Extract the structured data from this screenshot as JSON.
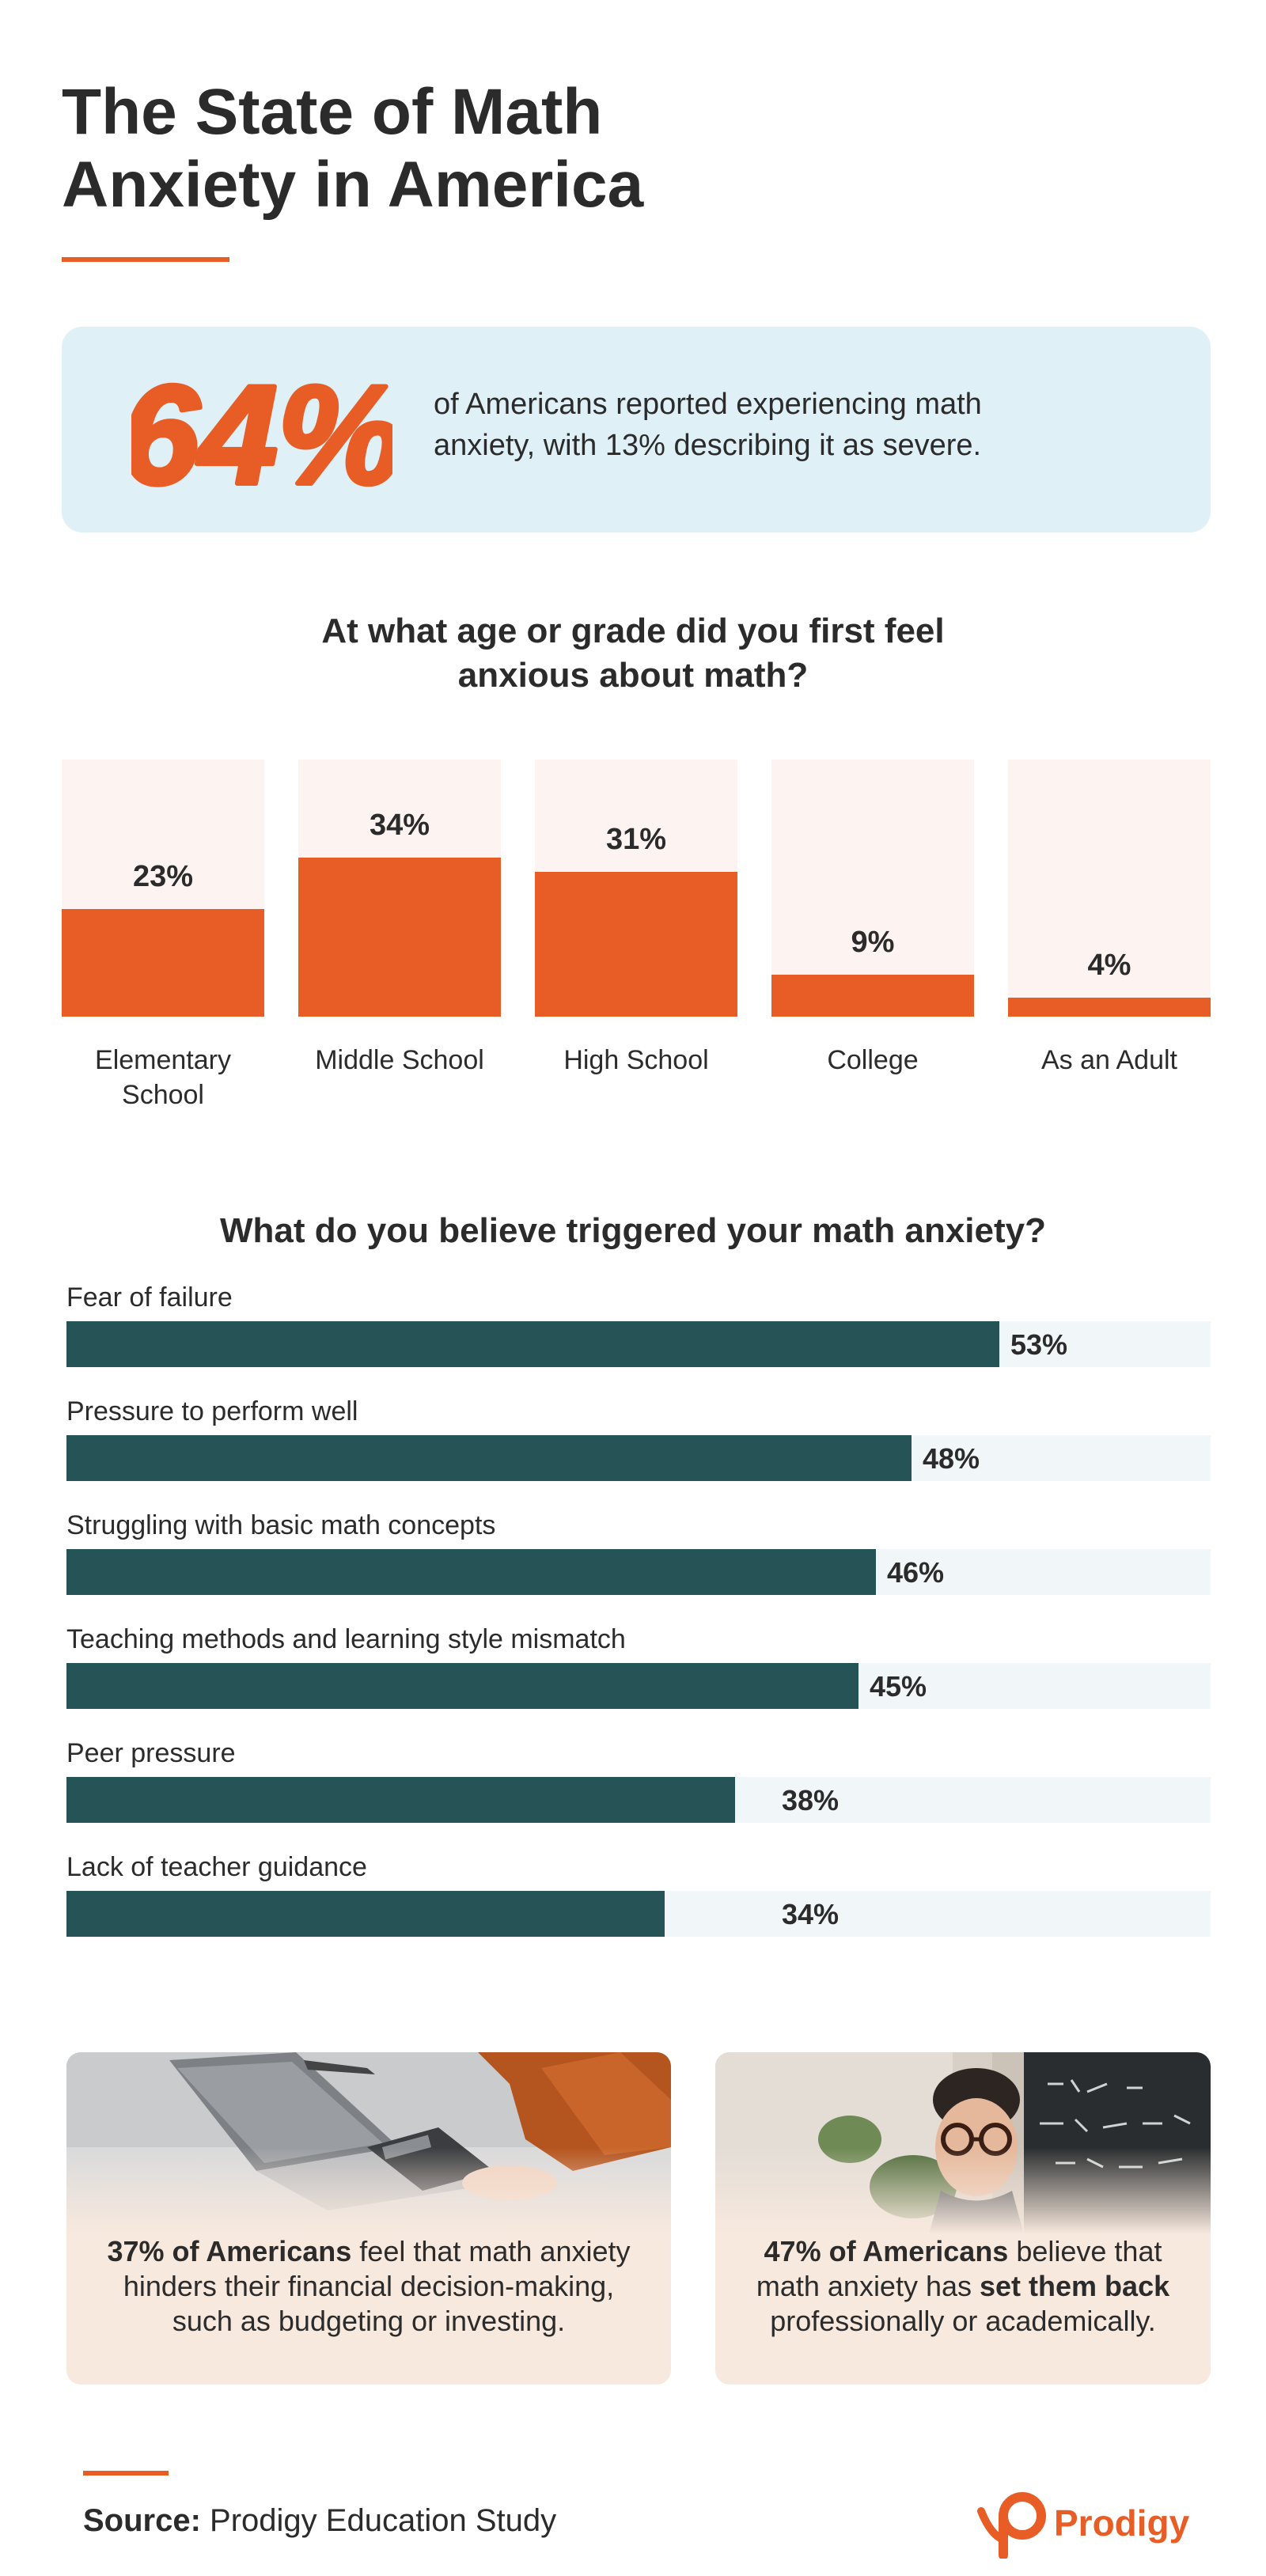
{
  "title": {
    "line1": "The State of Math",
    "line2": "Anxiety in America"
  },
  "headline_stat": {
    "value": "64%",
    "text": "of Americans reported experiencing math anxiety, with 13% describing it as severe."
  },
  "colors": {
    "accent": "#e85d25",
    "teal": "#265355",
    "stat_bg": "#dff0f7",
    "card_bg": "#f8e9de"
  },
  "chart_data": [
    {
      "type": "bar",
      "title_line1": "At what age or grade did you first feel",
      "title_line2": "anxious about math?",
      "categories": [
        "Elementary School",
        "Middle School",
        "High School",
        "College",
        "As an Adult"
      ],
      "category_lines": [
        [
          "Elementary",
          "School"
        ],
        [
          "Middle School"
        ],
        [
          "High School"
        ],
        [
          "College"
        ],
        [
          "As an Adult"
        ]
      ],
      "values": [
        23,
        34,
        31,
        9,
        4
      ],
      "labels": [
        "23%",
        "34%",
        "31%",
        "9%",
        "4%"
      ],
      "ylim": [
        0,
        55
      ]
    },
    {
      "type": "bar",
      "orientation": "horizontal",
      "title": "What do you believe triggered your math anxiety?",
      "categories": [
        "Fear of failure",
        "Pressure to perform well",
        "Struggling with basic math concepts",
        "Teaching methods and learning style mismatch",
        "Peer pressure",
        "Lack of teacher guidance"
      ],
      "values": [
        53,
        48,
        46,
        45,
        38,
        34
      ],
      "labels": [
        "53%",
        "48%",
        "46%",
        "45%",
        "38%",
        "34%"
      ],
      "xlim": [
        0,
        65
      ]
    }
  ],
  "cards": [
    {
      "bold": "37% of Americans",
      "text": " feel that math anxiety hinders their financial decision-making, such as budgeting or investing.",
      "image_icon": "calculator-laptop-photo"
    },
    {
      "bold1": "47% of Americans",
      "text1": " believe that math anxiety has ",
      "bold2": "set them back",
      "text2": " professionally or academically.",
      "image_icon": "thinking-man-chalkboard-photo"
    }
  ],
  "source": {
    "label": "Source:",
    "text": " Prodigy Education Study"
  },
  "brand": {
    "name": "Prodigy",
    "icon": "prodigy-logo-icon"
  }
}
